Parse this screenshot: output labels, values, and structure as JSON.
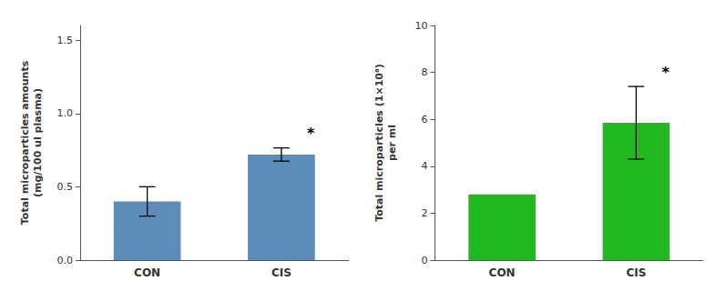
{
  "chart_data": [
    {
      "type": "bar",
      "categories": [
        "CON",
        "CIS"
      ],
      "values": [
        0.4,
        0.72
      ],
      "errors": [
        0.1,
        0.045
      ],
      "color": "#5b8db8",
      "ylabel": "Total microparticles amounts\n(mg/100 ul plasma)",
      "ylim": [
        0,
        1.6
      ],
      "yticks": [
        {
          "value": 0,
          "label": "0.0"
        },
        0.5,
        {
          "value": 1,
          "label": "1.0"
        },
        1.5
      ],
      "annotations": [
        {
          "text": "*",
          "category": "CIS"
        }
      ],
      "grid": false
    },
    {
      "type": "bar",
      "categories": [
        "CON",
        "CIS"
      ],
      "values": [
        2.8,
        5.85
      ],
      "errors": [
        0.0,
        1.55
      ],
      "color": "#22b822",
      "ylabel": "Total microparticles (1×10⁸)\nper ml",
      "ylim": [
        0,
        10
      ],
      "yticks": [
        0,
        2,
        4,
        6,
        8,
        10
      ],
      "annotations": [
        {
          "text": "*",
          "category": "CIS"
        }
      ],
      "grid": false
    }
  ]
}
